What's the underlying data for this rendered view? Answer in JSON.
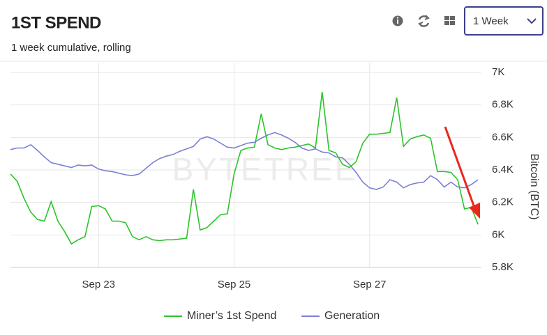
{
  "header": {
    "title": "1ST SPEND",
    "subtitle": "1 week cumulative, rolling",
    "period": "1 Week"
  },
  "chart_data": {
    "type": "line",
    "watermark": "BYTETREE",
    "y_label": "Bitcoin (BTC)",
    "grid": true,
    "legend": "bottom",
    "xlim": [
      21.7,
      28.65
    ],
    "xticks": [
      {
        "value": 23,
        "label": "Sep 23"
      },
      {
        "value": 25,
        "label": "Sep 25"
      },
      {
        "value": 27,
        "label": "Sep 27"
      }
    ],
    "ylim": [
      5800,
      7000
    ],
    "yticks": [
      {
        "value": 5800,
        "label": "5.8K"
      },
      {
        "value": 6000,
        "label": "6K"
      },
      {
        "value": 6200,
        "label": "6.2K"
      },
      {
        "value": 6400,
        "label": "6.4K"
      },
      {
        "value": 6600,
        "label": "6.6K"
      },
      {
        "value": 6800,
        "label": "6.8K"
      },
      {
        "value": 7000,
        "label": "7K"
      }
    ],
    "x": [
      21.7,
      21.8,
      21.9,
      22.0,
      22.1,
      22.2,
      22.3,
      22.4,
      22.5,
      22.6,
      22.7,
      22.8,
      22.9,
      23.0,
      23.1,
      23.2,
      23.3,
      23.4,
      23.5,
      23.6,
      23.7,
      23.8,
      23.9,
      24.0,
      24.1,
      24.2,
      24.3,
      24.4,
      24.5,
      24.6,
      24.7,
      24.8,
      24.9,
      25.0,
      25.1,
      25.2,
      25.3,
      25.4,
      25.5,
      25.6,
      25.7,
      25.8,
      25.9,
      26.0,
      26.1,
      26.2,
      26.3,
      26.4,
      26.5,
      26.6,
      26.7,
      26.8,
      26.9,
      27.0,
      27.1,
      27.2,
      27.3,
      27.4,
      27.5,
      27.6,
      27.7,
      27.8,
      27.9,
      28.0,
      28.1,
      28.2,
      28.3,
      28.4,
      28.5,
      28.6
    ],
    "series": [
      {
        "name": "Miner’s 1st Spend",
        "color": "#2bc42b",
        "values": [
          6375,
          6330,
          6225,
          6140,
          6095,
          6085,
          6205,
          6085,
          6020,
          5945,
          5970,
          5990,
          6175,
          6180,
          6160,
          6085,
          6085,
          6075,
          5990,
          5970,
          5990,
          5970,
          5965,
          5970,
          5970,
          5975,
          5980,
          6280,
          6030,
          6045,
          6085,
          6125,
          6130,
          6375,
          6520,
          6535,
          6540,
          6745,
          6555,
          6535,
          6525,
          6535,
          6540,
          6550,
          6560,
          6535,
          6880,
          6520,
          6505,
          6435,
          6415,
          6450,
          6565,
          6620,
          6620,
          6625,
          6630,
          6845,
          6545,
          6590,
          6605,
          6615,
          6595,
          6390,
          6390,
          6385,
          6340,
          6160,
          6170,
          6065
        ]
      },
      {
        "name": "Generation",
        "color": "#7b7fd6",
        "values": [
          6525,
          6535,
          6535,
          6555,
          6520,
          6480,
          6445,
          6435,
          6425,
          6415,
          6430,
          6425,
          6430,
          6405,
          6395,
          6390,
          6380,
          6370,
          6365,
          6375,
          6410,
          6445,
          6470,
          6485,
          6495,
          6515,
          6530,
          6545,
          6590,
          6605,
          6590,
          6565,
          6540,
          6535,
          6550,
          6565,
          6570,
          6595,
          6615,
          6630,
          6615,
          6595,
          6570,
          6535,
          6520,
          6530,
          6510,
          6505,
          6480,
          6475,
          6435,
          6385,
          6325,
          6290,
          6280,
          6295,
          6340,
          6325,
          6290,
          6310,
          6320,
          6325,
          6365,
          6340,
          6295,
          6325,
          6295,
          6290,
          6310,
          6340
        ]
      }
    ]
  }
}
